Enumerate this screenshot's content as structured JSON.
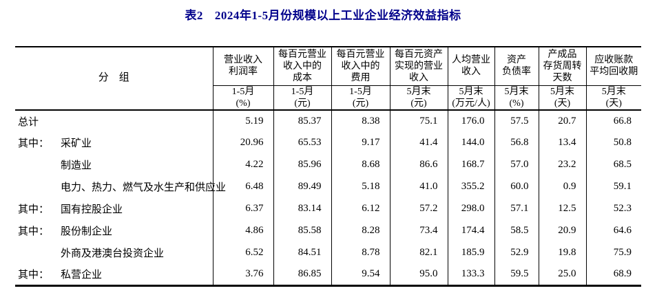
{
  "title": {
    "table_no": "表2",
    "text": "2024年1-5月份规模以上工业企业经济效益指标"
  },
  "colors": {
    "title_text": "#00008B",
    "table_text": "#000000",
    "border": "#000000",
    "background": "#ffffff"
  },
  "table": {
    "group_header": "分    组",
    "columns": [
      {
        "name": "营业收入\n利润率",
        "period": "1-5月\n(%)"
      },
      {
        "name": "每百元营业\n收入中的\n成本",
        "period": "1-5月\n(元)"
      },
      {
        "name": "每百元营业\n收入中的\n费用",
        "period": "1-5月\n(元)"
      },
      {
        "name": "每百元资产\n实现的营业\n收入",
        "period": "5月末\n(元)"
      },
      {
        "name": "人均营业\n收入",
        "period": "5月末\n(万元/人)"
      },
      {
        "name": "资产\n负债率",
        "period": "5月末\n(%)"
      },
      {
        "name": "产成品\n存货周转\n天数",
        "period": "5月末\n(天)"
      },
      {
        "name": "应收账款\n平均回收期",
        "period": "5月末\n(天)"
      }
    ],
    "rows": [
      {
        "prefix": "",
        "name": "总计",
        "indent": false,
        "values": [
          "5.19",
          "85.37",
          "8.38",
          "75.1",
          "176.0",
          "57.5",
          "20.7",
          "66.8"
        ]
      },
      {
        "prefix": "其中：",
        "name": "采矿业",
        "indent": false,
        "values": [
          "20.96",
          "65.53",
          "9.17",
          "41.4",
          "144.0",
          "56.8",
          "13.4",
          "50.8"
        ]
      },
      {
        "prefix": "",
        "name": "制造业",
        "indent": true,
        "values": [
          "4.22",
          "85.96",
          "8.68",
          "86.6",
          "168.7",
          "57.0",
          "23.2",
          "68.5"
        ]
      },
      {
        "prefix": "",
        "name": "电力、热力、燃气及水生产和供应业",
        "indent": true,
        "values": [
          "6.48",
          "89.49",
          "5.18",
          "41.0",
          "355.2",
          "60.0",
          "0.9",
          "59.1"
        ]
      },
      {
        "prefix": "其中：",
        "name": "国有控股企业",
        "indent": false,
        "values": [
          "6.37",
          "83.14",
          "6.12",
          "57.2",
          "298.0",
          "57.1",
          "12.5",
          "52.3"
        ]
      },
      {
        "prefix": "其中：",
        "name": "股份制企业",
        "indent": false,
        "values": [
          "4.86",
          "85.58",
          "8.28",
          "73.4",
          "174.4",
          "58.5",
          "20.9",
          "64.6"
        ]
      },
      {
        "prefix": "",
        "name": "外商及港澳台投资企业",
        "indent": true,
        "values": [
          "6.52",
          "84.51",
          "8.78",
          "82.1",
          "185.9",
          "52.9",
          "19.8",
          "75.9"
        ]
      },
      {
        "prefix": "其中：",
        "name": "私营企业",
        "indent": false,
        "values": [
          "3.76",
          "86.85",
          "9.54",
          "95.0",
          "133.3",
          "59.5",
          "25.0",
          "68.9"
        ]
      }
    ]
  }
}
